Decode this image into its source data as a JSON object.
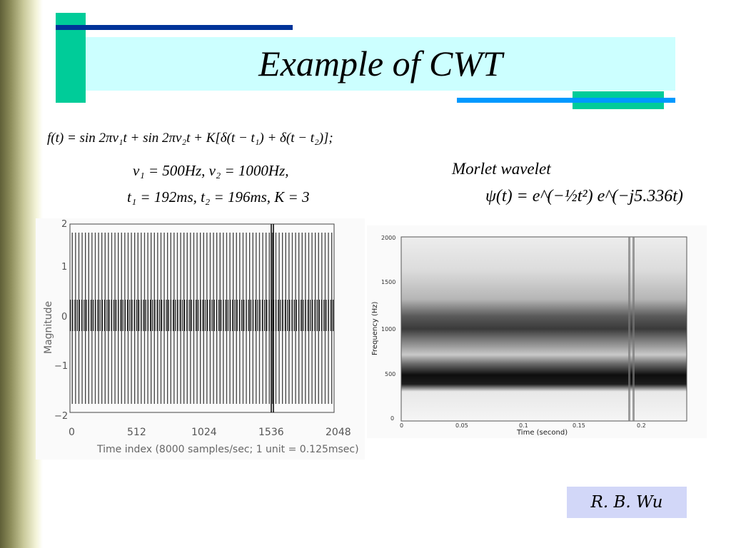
{
  "slide": {
    "title": "Example of CWT",
    "author": "R. B. Wu"
  },
  "equations": {
    "line1": "f(t) = sin 2πν₁t + sin 2πν₂t + K[δ(t − t₁) + δ(t − t₂)];",
    "line2": "ν₁ = 500Hz, ν₂ = 1000Hz,",
    "line3": "t₁ = 192ms, t₂ = 196ms, K = 3",
    "wavelet_label": "Morlet wavelet",
    "wavelet_formula": "ψ(t) = e^(−½t²) e^(−j5.336t)"
  },
  "signal_plot": {
    "ylabel": "Magnitude",
    "xlabel": "Time index (8000 samples/sec; 1 unit = 0.125msec)",
    "xticks": [
      "0",
      "512",
      "1024",
      "1536",
      "2048"
    ],
    "yticks": [
      "2",
      "1",
      "0",
      "−1",
      "−2"
    ]
  },
  "cwt_plot": {
    "ylabel": "Frequency (Hz)",
    "xlabel": "Time (second)",
    "xticks": [
      "0",
      "0.05",
      "0.1",
      "0.15",
      "0.2"
    ],
    "yticks": [
      "2000",
      "1500",
      "1000",
      "500",
      "0"
    ]
  }
}
